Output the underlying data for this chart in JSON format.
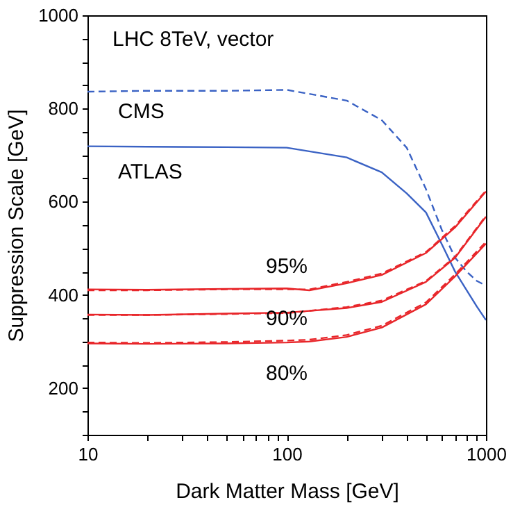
{
  "chart_data": {
    "type": "line",
    "xlabel": "Dark Matter Mass [GeV]",
    "ylabel": "Suppression Scale [GeV]",
    "log": "x",
    "grid": false,
    "marker": "none",
    "xlim": [
      10,
      1000
    ],
    "ylim": [
      100,
      1000
    ],
    "xticks": [
      10,
      {
        "value": 20,
        "label": null
      },
      {
        "value": 30,
        "label": null
      },
      {
        "value": 40,
        "label": null
      },
      {
        "value": 50,
        "label": null
      },
      {
        "value": 60,
        "label": null
      },
      {
        "value": 70,
        "label": null
      },
      {
        "value": 80,
        "label": null
      },
      {
        "value": 90,
        "label": null
      },
      100,
      {
        "value": 200,
        "label": null
      },
      {
        "value": 300,
        "label": null
      },
      {
        "value": 400,
        "label": null
      },
      {
        "value": 500,
        "label": null
      },
      {
        "value": 600,
        "label": null
      },
      {
        "value": 700,
        "label": null
      },
      {
        "value": 800,
        "label": null
      },
      {
        "value": 900,
        "label": null
      },
      1000
    ],
    "yticks": [
      {
        "value": 100,
        "label": null
      },
      {
        "value": 150,
        "label": null
      },
      200,
      {
        "value": 250,
        "label": null
      },
      {
        "value": 300,
        "label": null
      },
      {
        "value": 350,
        "label": null
      },
      400,
      {
        "value": 450,
        "label": null
      },
      {
        "value": 500,
        "label": null
      },
      {
        "value": 550,
        "label": null
      },
      600,
      {
        "value": 650,
        "label": null
      },
      {
        "value": 700,
        "label": null
      },
      {
        "value": 750,
        "label": null
      },
      800,
      {
        "value": 850,
        "label": null
      },
      {
        "value": 900,
        "label": null
      },
      {
        "value": 950,
        "label": null
      },
      1000
    ],
    "annotations": [
      "LHC 8TeV, vector"
    ],
    "series": [
      {
        "name": "CMS",
        "color": "#3a62c4",
        "line_style": "dashed",
        "x": [
          10,
          20,
          50,
          100,
          200,
          300,
          400,
          500,
          600,
          700,
          800,
          900,
          1000
        ],
        "values": [
          836,
          838,
          838,
          840,
          817,
          775,
          716,
          627,
          540,
          480,
          450,
          430,
          420
        ]
      },
      {
        "name": "ATLAS",
        "color": "#3a62c4",
        "line_style": "solid",
        "x": [
          10,
          20,
          50,
          100,
          200,
          300,
          400,
          500,
          600,
          700,
          800,
          900,
          1000
        ],
        "values": [
          719,
          718,
          717,
          716,
          695,
          663,
          618,
          577,
          509,
          450,
          410,
          375,
          346
        ]
      },
      {
        "name": "95%",
        "color": "#e8262a",
        "line_style": "solid",
        "x": [
          10,
          20,
          50,
          100,
          130,
          200,
          300,
          500,
          700,
          1000
        ],
        "values": [
          412,
          411,
          413,
          414,
          410,
          425,
          443,
          490,
          545,
          622
        ]
      },
      {
        "color": "#e8262a",
        "line_style": "dashed",
        "x": [
          10,
          20,
          50,
          100,
          130,
          200,
          300,
          500,
          700,
          1000
        ],
        "values": [
          410,
          410,
          412,
          412,
          412,
          428,
          446,
          492,
          548,
          624
        ]
      },
      {
        "name": "90%",
        "color": "#e8262a",
        "line_style": "solid",
        "x": [
          10,
          20,
          50,
          100,
          200,
          300,
          500,
          700,
          1000
        ],
        "values": [
          358,
          357,
          360,
          362,
          372,
          385,
          428,
          480,
          568
        ]
      },
      {
        "color": "#e8262a",
        "line_style": "dashed",
        "x": [
          10,
          20,
          50,
          100,
          200,
          300,
          500,
          700,
          1000
        ],
        "values": [
          357,
          357,
          359,
          361,
          374,
          388,
          430,
          482,
          570
        ]
      },
      {
        "name": "80%",
        "color": "#e8262a",
        "line_style": "solid",
        "x": [
          10,
          20,
          50,
          100,
          130,
          200,
          300,
          500,
          700,
          1000
        ],
        "values": [
          296,
          295,
          296,
          298,
          300,
          310,
          330,
          380,
          440,
          510
        ]
      },
      {
        "color": "#e8262a",
        "line_style": "dashed",
        "x": [
          10,
          20,
          50,
          100,
          130,
          200,
          300,
          500,
          700,
          1000
        ],
        "values": [
          298,
          297,
          299,
          302,
          304,
          314,
          334,
          384,
          444,
          514
        ]
      }
    ]
  }
}
